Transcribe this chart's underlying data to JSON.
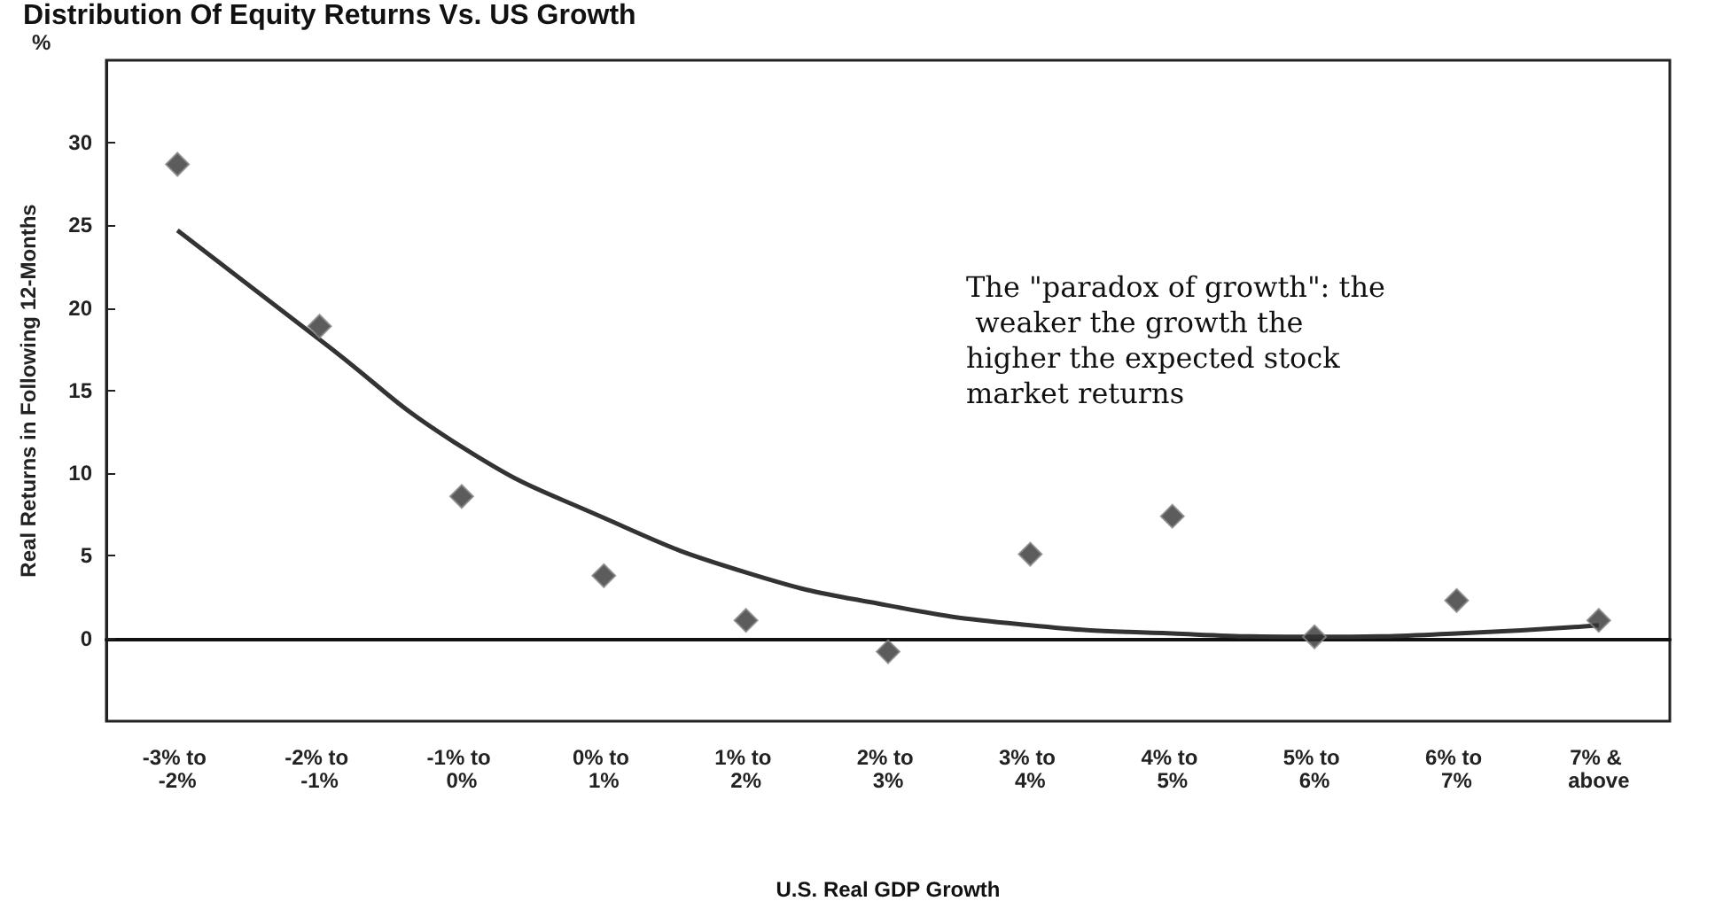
{
  "chart_data": {
    "type": "scatter",
    "title": "Distribution Of Equity Returns Vs. US Growth",
    "xlabel": "U.S. Real GDP Growth",
    "ylabel": "Real Returns in Following 12-Months",
    "annotations": [
      "%",
      "The \"paradox of growth\": the weaker the growth the higher the expected stock market returns"
    ],
    "categories": [
      "-3% to -2%",
      "-2% to -1%",
      "-1% to 0%",
      "0% to 1%",
      "1% to 2%",
      "2% to 3%",
      "3% to 4%",
      "4% to 5%",
      "5% to 6%",
      "6% to 7%",
      "7% & above"
    ],
    "series": [
      {
        "type": "line",
        "color": "#333333",
        "marker": "none",
        "values": [
          24.7,
          18.1,
          11.6,
          7.3,
          4.0,
          2.0,
          0.8,
          0.3,
          0.1,
          0.3,
          0.8
        ]
      },
      {
        "color": "#333333",
        "marker": "diamond",
        "values": [
          28.7,
          18.9,
          8.6,
          3.8,
          1.1,
          -0.8,
          5.1,
          7.4,
          0.1,
          2.3,
          1.1
        ]
      }
    ],
    "ylim": [
      -5,
      35
    ],
    "yticks": [
      0,
      5,
      10,
      15,
      20,
      25,
      30
    ]
  }
}
